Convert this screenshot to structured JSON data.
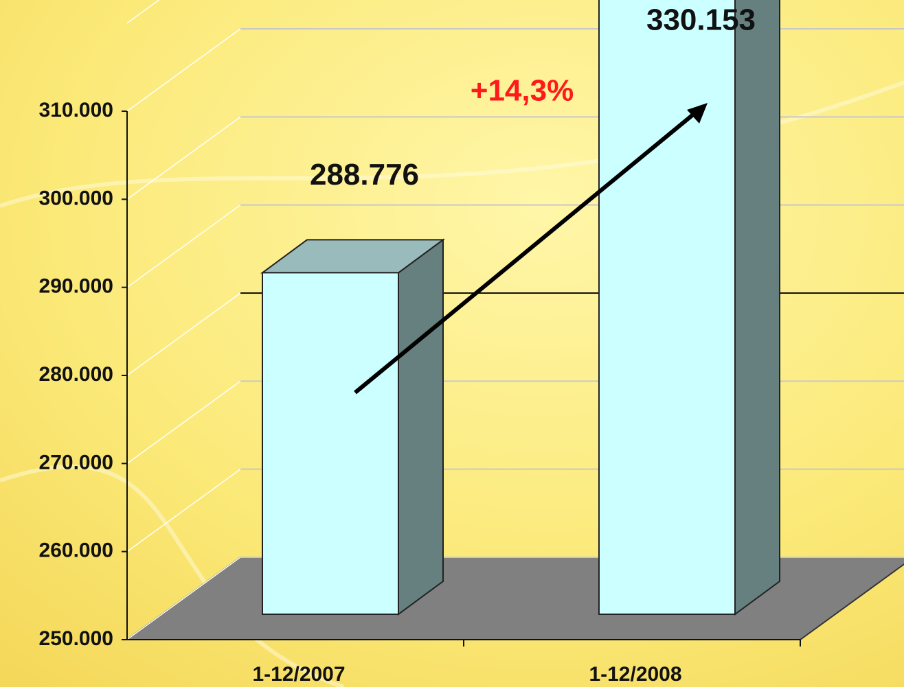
{
  "chart_data": {
    "type": "bar3d",
    "categories": [
      "1-12/2007",
      "1-12/2008"
    ],
    "values": [
      288776,
      330153
    ],
    "value_labels": [
      "288.776",
      "330.153"
    ],
    "annotation": "+14,3%",
    "color": "#ccffff",
    "ylim": [
      250000,
      320000
    ],
    "yticks": [
      {
        "value": 250000,
        "label": "250.000"
      },
      {
        "value": 260000,
        "label": "260.000"
      },
      {
        "value": 270000,
        "label": "270.000"
      },
      {
        "value": 280000,
        "label": "280.000"
      },
      {
        "value": 290000,
        "label": "290.000"
      },
      {
        "value": 300000,
        "label": "300.000"
      },
      {
        "value": 310000,
        "label": "310.000"
      }
    ],
    "grid": true
  }
}
